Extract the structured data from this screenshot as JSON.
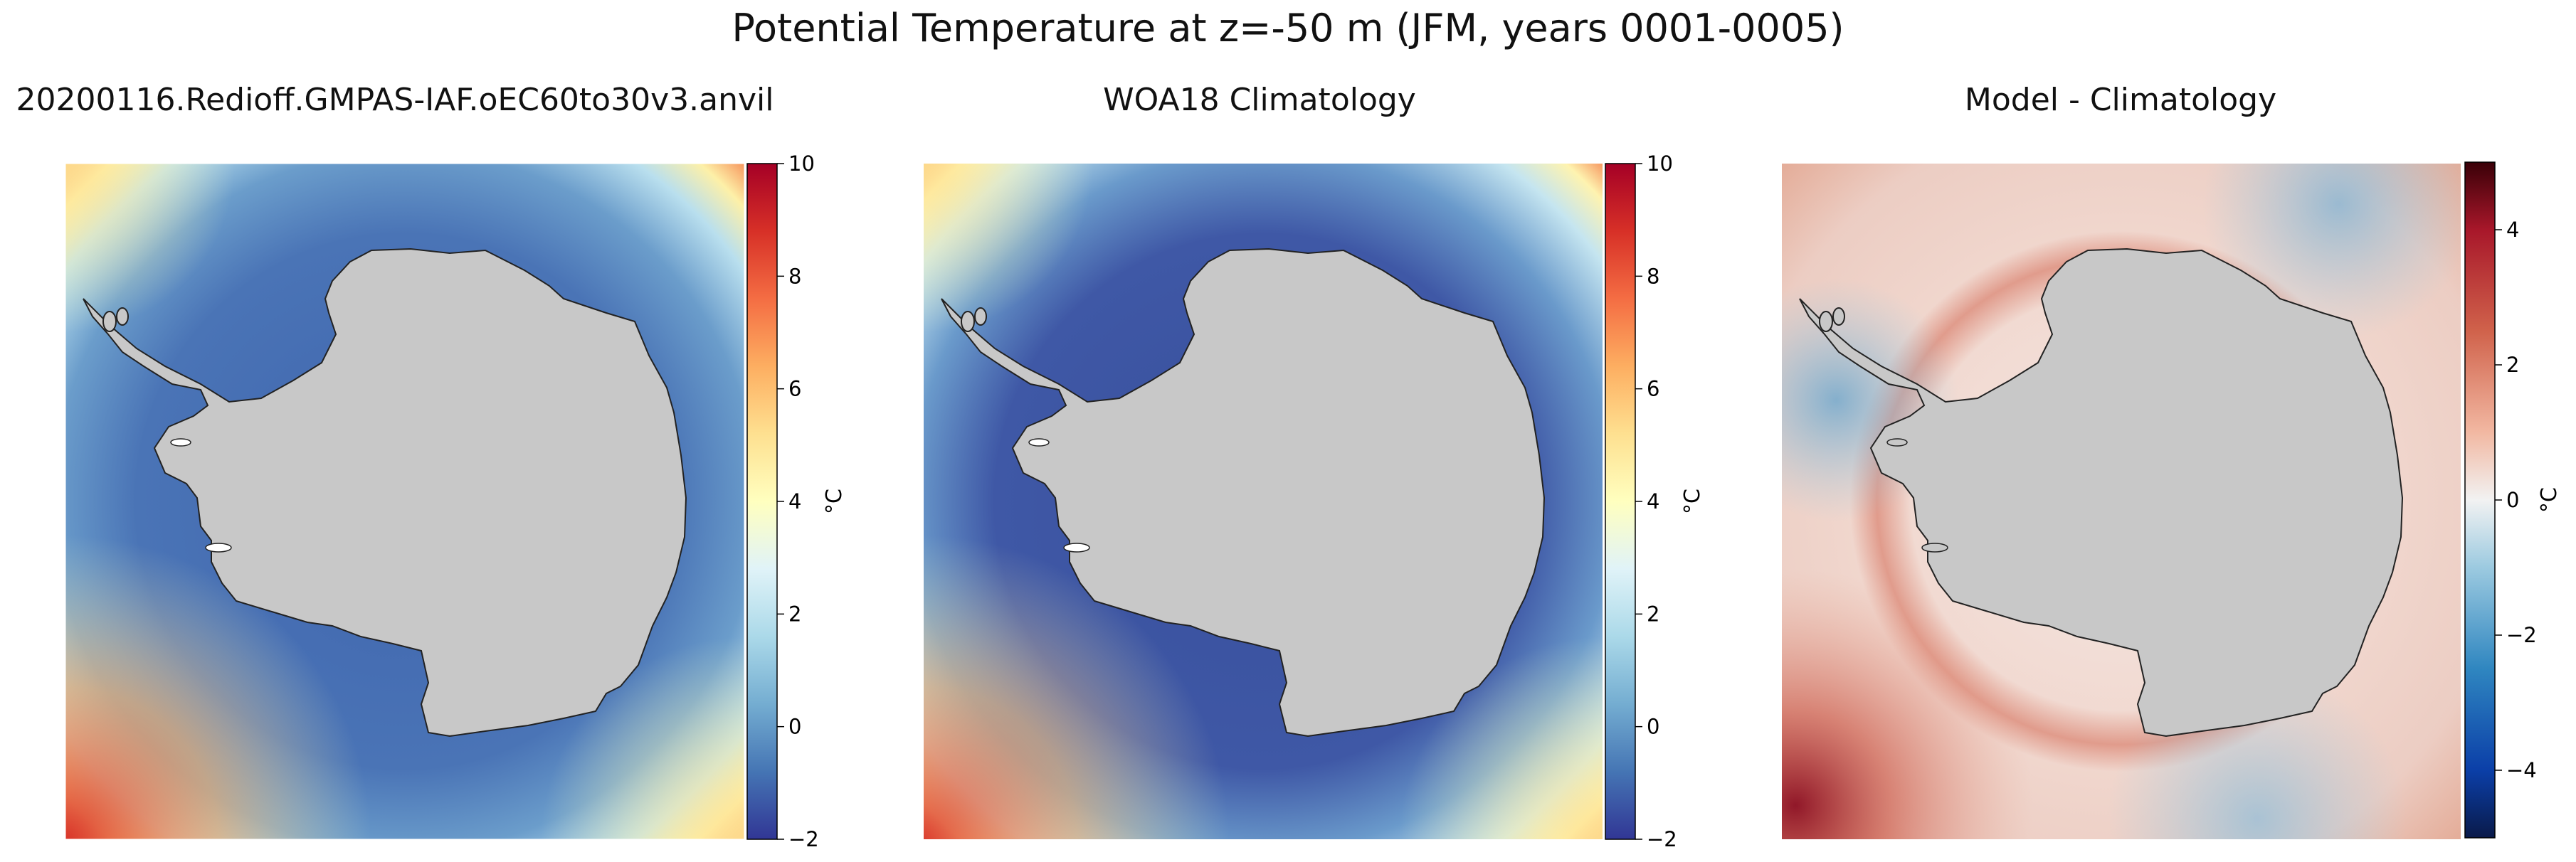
{
  "figure": {
    "suptitle": "Potential Temperature at z=-50 m (JFM, years 0001-0005)"
  },
  "chart_data": [
    {
      "type": "heatmap",
      "title": "20200116.Redioff.GMPAS-IAF.oEC60to30v3.anvil",
      "colormap": "RdYlBu_r",
      "colorbar": {
        "label": "°C",
        "ticks": [
          "−2",
          "0",
          "2",
          "4",
          "6",
          "8",
          "10"
        ],
        "tick_values": [
          -2,
          0,
          2,
          4,
          6,
          8,
          10
        ],
        "range": [
          -2,
          10
        ]
      },
      "colors": {
        "low": "#313695",
        "mid": "#ffffbf",
        "high": "#a50026",
        "land": "#c8c8c8"
      }
    },
    {
      "type": "heatmap",
      "title": "WOA18 Climatology",
      "colormap": "RdYlBu_r",
      "colorbar": {
        "label": "°C",
        "ticks": [
          "−2",
          "0",
          "2",
          "4",
          "6",
          "8",
          "10"
        ],
        "tick_values": [
          -2,
          0,
          2,
          4,
          6,
          8,
          10
        ],
        "range": [
          -2,
          10
        ]
      },
      "colors": {
        "low": "#313695",
        "mid": "#ffffbf",
        "high": "#a50026",
        "land": "#c8c8c8"
      }
    },
    {
      "type": "heatmap",
      "title": "Model - Climatology",
      "colormap": "RdBu_r",
      "colorbar": {
        "label": "°C",
        "ticks": [
          "−4",
          "−2",
          "0",
          "2",
          "4"
        ],
        "tick_values": [
          -4,
          -2,
          0,
          2,
          4
        ],
        "range": [
          -5,
          5
        ]
      },
      "colors": {
        "low": "#0a1a4a",
        "mid": "#f2f2f2",
        "high": "#3a0008",
        "land": "#c8c8c8"
      }
    }
  ]
}
